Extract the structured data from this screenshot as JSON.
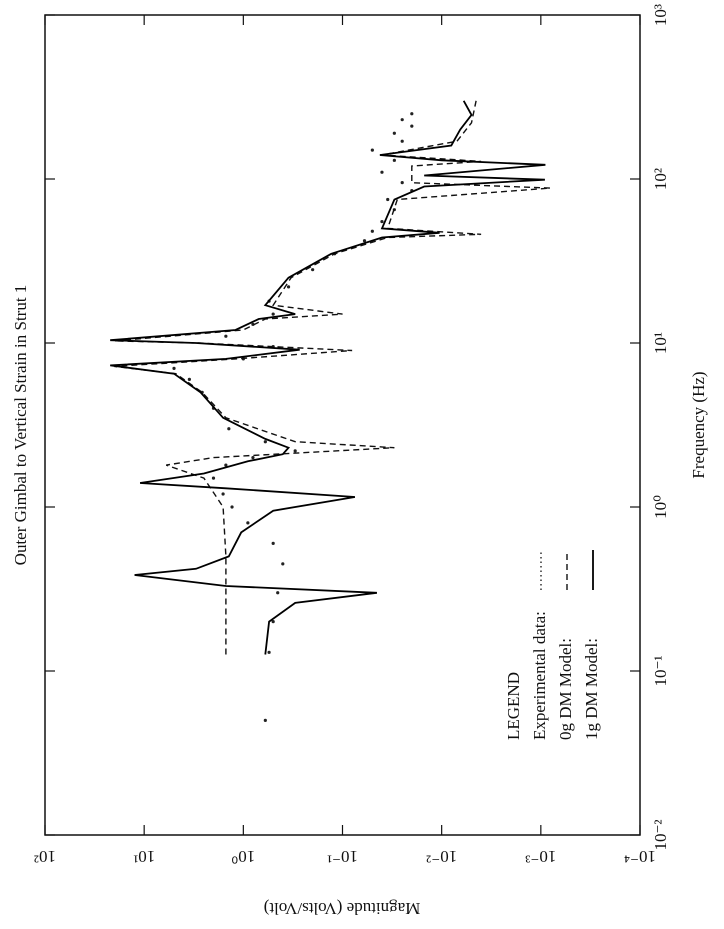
{
  "chart_data": {
    "type": "line",
    "title": "Outer Gimbal to Vertical Strain in Strut 1",
    "x_label": "Frequency (Hz)",
    "y_label": "Magnitude (Volts/Volt)",
    "x_log": true,
    "y_log": true,
    "xlim": [
      0.01,
      1000
    ],
    "ylim": [
      0.0001,
      100
    ],
    "xticks": [
      {
        "value": 0.01,
        "label": "10⁻²"
      },
      {
        "value": 0.1,
        "label": "10⁻¹"
      },
      {
        "value": 1,
        "label": "10⁰"
      },
      {
        "value": 10,
        "label": "10¹"
      },
      {
        "value": 100,
        "label": "10²"
      },
      {
        "value": 1000,
        "label": "10³"
      }
    ],
    "yticks": [
      {
        "value": 0.0001,
        "label": "10⁻⁴"
      },
      {
        "value": 0.001,
        "label": "10⁻³"
      },
      {
        "value": 0.01,
        "label": "10⁻²"
      },
      {
        "value": 0.1,
        "label": "10⁻¹"
      },
      {
        "value": 1,
        "label": "10⁰"
      },
      {
        "value": 10,
        "label": "10¹"
      },
      {
        "value": 100,
        "label": "10²"
      }
    ],
    "legend_title": "LEGEND",
    "legend_position": "lower-left",
    "series": [
      {
        "name": "Experimental data:",
        "color": "#222222",
        "style": "dotted",
        "x": [
          0.05,
          0.13,
          0.2,
          0.3,
          0.45,
          0.6,
          0.8,
          1.0,
          1.2,
          1.5,
          1.8,
          2.0,
          2.2,
          2.5,
          3.0,
          4.0,
          5.0,
          6.0,
          7.0,
          8.0,
          9.5,
          11,
          13,
          15,
          18,
          22,
          28,
          35,
          42,
          48,
          55,
          65,
          75,
          85,
          95,
          110,
          130,
          150,
          170,
          190,
          210,
          230,
          250
        ],
        "values": [
          0.6,
          0.55,
          0.5,
          0.45,
          0.4,
          0.5,
          0.9,
          1.3,
          1.6,
          2.0,
          1.5,
          0.8,
          0.3,
          0.6,
          1.4,
          2.0,
          2.6,
          3.5,
          5.0,
          1.0,
          0.5,
          1.5,
          0.8,
          0.5,
          0.55,
          0.35,
          0.2,
          0.12,
          0.06,
          0.05,
          0.04,
          0.03,
          0.035,
          0.02,
          0.025,
          0.04,
          0.03,
          0.05,
          0.025,
          0.03,
          0.02,
          0.025,
          0.02
        ]
      },
      {
        "name": "0g DM Model:",
        "color": "#111111",
        "style": "dashed",
        "x": [
          0.126,
          0.5,
          1,
          1.5,
          1.8,
          2,
          2.3,
          2.5,
          3.5,
          5,
          6.5,
          7.2,
          8,
          9,
          10,
          10.3,
          12,
          14,
          15,
          17,
          25,
          35,
          44,
          46,
          50,
          75,
          88,
          95,
          120,
          128,
          140,
          170,
          220,
          300
        ],
        "values": [
          1.5,
          1.5,
          1.6,
          2.5,
          6,
          2,
          0.03,
          0.3,
          1.5,
          2.6,
          4.8,
          20,
          1.2,
          0.08,
          2.8,
          20,
          1,
          0.6,
          0.1,
          0.5,
          0.33,
          0.12,
          0.035,
          0.004,
          0.035,
          0.028,
          0.0008,
          0.02,
          0.02,
          0.004,
          0.04,
          0.007,
          0.005,
          0.0045
        ]
      },
      {
        "name": "1g DM Model:",
        "color": "#000000",
        "style": "solid",
        "x": [
          0.126,
          0.2,
          0.26,
          0.3,
          0.33,
          0.385,
          0.42,
          0.5,
          0.7,
          0.95,
          1.15,
          1.3,
          1.4,
          1.6,
          1.9,
          2.1,
          2.3,
          2.6,
          3.5,
          5,
          6.5,
          7.3,
          8,
          9.1,
          10,
          10.4,
          12,
          14,
          15,
          17,
          25,
          35,
          44,
          47,
          50,
          75,
          90,
          99,
          105,
          122,
          130,
          140,
          160,
          200,
          246,
          300
        ],
        "values": [
          0.6,
          0.55,
          0.3,
          0.045,
          1.5,
          12.5,
          3,
          1.4,
          1.05,
          0.5,
          0.075,
          1.5,
          11,
          2.5,
          0.9,
          0.4,
          0.35,
          0.6,
          1.6,
          2.7,
          5,
          22,
          1.5,
          0.27,
          3,
          22,
          1.2,
          0.7,
          0.3,
          0.6,
          0.35,
          0.13,
          0.04,
          0.0105,
          0.04,
          0.03,
          0.015,
          0.00091,
          0.015,
          0.0009,
          0.01,
          0.042,
          0.008,
          0.0065,
          0.005,
          0.006
        ]
      }
    ]
  }
}
